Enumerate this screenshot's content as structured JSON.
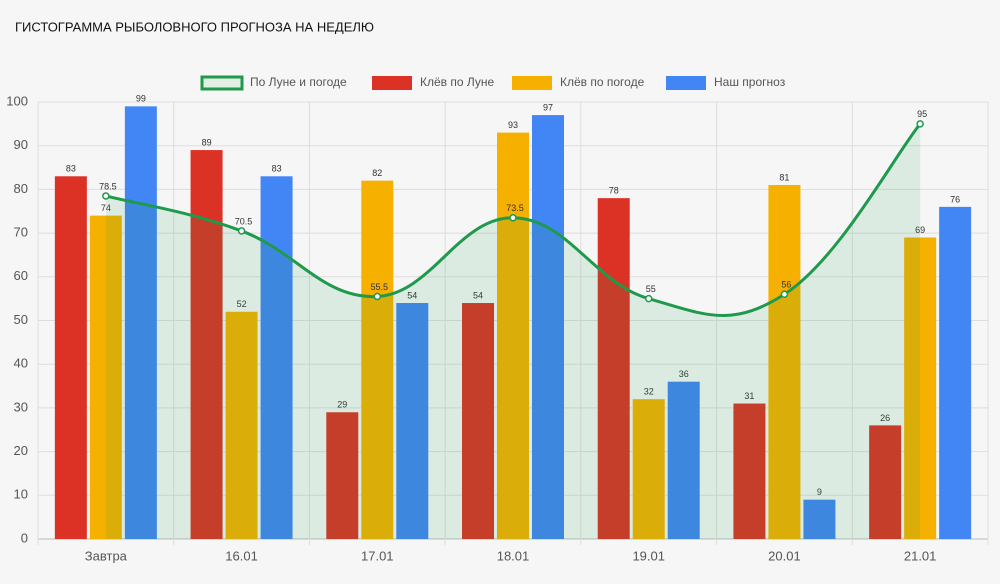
{
  "chart_data": {
    "type": "bar-line",
    "title": "ГИСТОГРАММА РЫБОЛОВНОГО ПРОГНОЗА НА НЕДЕЛЮ",
    "categories": [
      "Завтра",
      "16.01",
      "17.01",
      "18.01",
      "19.01",
      "20.01",
      "21.01"
    ],
    "series": [
      {
        "name": "По Луне и погоде",
        "type": "line",
        "color": "#1f9a4c",
        "values": [
          78.5,
          70.5,
          55.5,
          73.5,
          55,
          56,
          95
        ]
      },
      {
        "name": "Клёв по Луне",
        "type": "bar",
        "color": "#dc3226",
        "values": [
          83,
          89,
          29,
          54,
          78,
          31,
          26
        ]
      },
      {
        "name": "Клёв по погоде",
        "type": "bar",
        "color": "#f5b000",
        "values": [
          74,
          52,
          82,
          93,
          32,
          81,
          69
        ]
      },
      {
        "name": "Наш прогноз",
        "type": "bar",
        "color": "#4285f4",
        "values": [
          99,
          83,
          54,
          97,
          36,
          9,
          76
        ]
      }
    ],
    "ylim": [
      0,
      100
    ],
    "yticks": [
      0,
      10,
      20,
      30,
      40,
      50,
      60,
      70,
      80,
      90,
      100
    ],
    "grid": true
  }
}
